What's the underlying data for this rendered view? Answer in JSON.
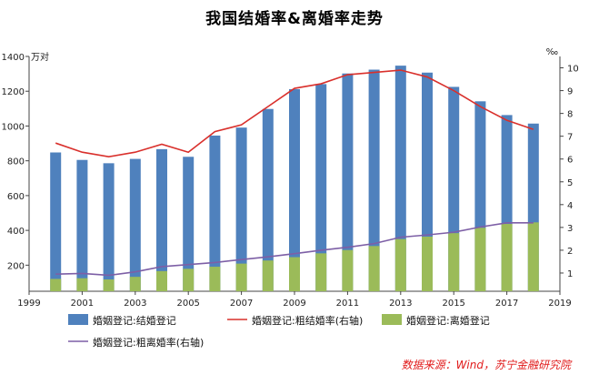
{
  "title": "我国结婚率&离婚率走势",
  "source_note": "数据来源：Wind，苏宁金融研究院",
  "chart_data": {
    "type": "bar",
    "title": "我国结婚率&离婚率走势",
    "years": [
      2000,
      2001,
      2002,
      2003,
      2004,
      2005,
      2006,
      2007,
      2008,
      2009,
      2010,
      2011,
      2012,
      2013,
      2014,
      2015,
      2016,
      2017,
      2018
    ],
    "left_axis": {
      "unit_label": "万对",
      "ylim": [
        50,
        1400
      ],
      "ticks": [
        200,
        400,
        600,
        800,
        1000,
        1200,
        1400
      ]
    },
    "right_axis": {
      "unit_label": "‰",
      "ylim": [
        0.2,
        10.5
      ],
      "ticks": [
        1,
        2,
        3,
        4,
        5,
        6,
        7,
        8,
        9,
        10
      ]
    },
    "x_axis": {
      "xlim": [
        1999,
        2019
      ],
      "tick_labels": [
        "1999",
        "2001",
        "2003",
        "2005",
        "2007",
        "2009",
        "2011",
        "2013",
        "2015",
        "2017",
        "2019"
      ]
    },
    "series": [
      {
        "name": "婚姻登记:结婚登记",
        "kind": "bar",
        "axis": "left",
        "color": "#4f81bd",
        "values": [
          848,
          805,
          786,
          811,
          867,
          823,
          945,
          991,
          1098,
          1212,
          1241,
          1302,
          1324,
          1347,
          1307,
          1225,
          1142,
          1063,
          1014
        ]
      },
      {
        "name": "婚姻登记:粗结婚率(右轴)",
        "kind": "line",
        "axis": "right",
        "color": "#d9302c",
        "values": [
          6.7,
          6.3,
          6.1,
          6.3,
          6.65,
          6.3,
          7.2,
          7.5,
          8.3,
          9.1,
          9.3,
          9.7,
          9.8,
          9.9,
          9.6,
          9.0,
          8.3,
          7.7,
          7.3
        ]
      },
      {
        "name": "婚姻登记:离婚登记",
        "kind": "bar",
        "axis": "left",
        "color": "#9bbb59",
        "values": [
          121,
          125,
          118,
          133,
          166,
          179,
          191,
          209,
          227,
          246,
          268,
          287,
          310,
          350,
          364,
          384,
          415,
          437,
          446
        ]
      },
      {
        "name": "婚姻登记:粗离婚率(右轴)",
        "kind": "line",
        "axis": "right",
        "color": "#7d5fa6",
        "values": [
          0.95,
          0.98,
          0.9,
          1.05,
          1.28,
          1.37,
          1.46,
          1.59,
          1.71,
          1.85,
          2.0,
          2.13,
          2.29,
          2.57,
          2.67,
          2.79,
          3.02,
          3.2,
          3.2
        ]
      }
    ],
    "legend_position": "bottom",
    "grid": false
  }
}
